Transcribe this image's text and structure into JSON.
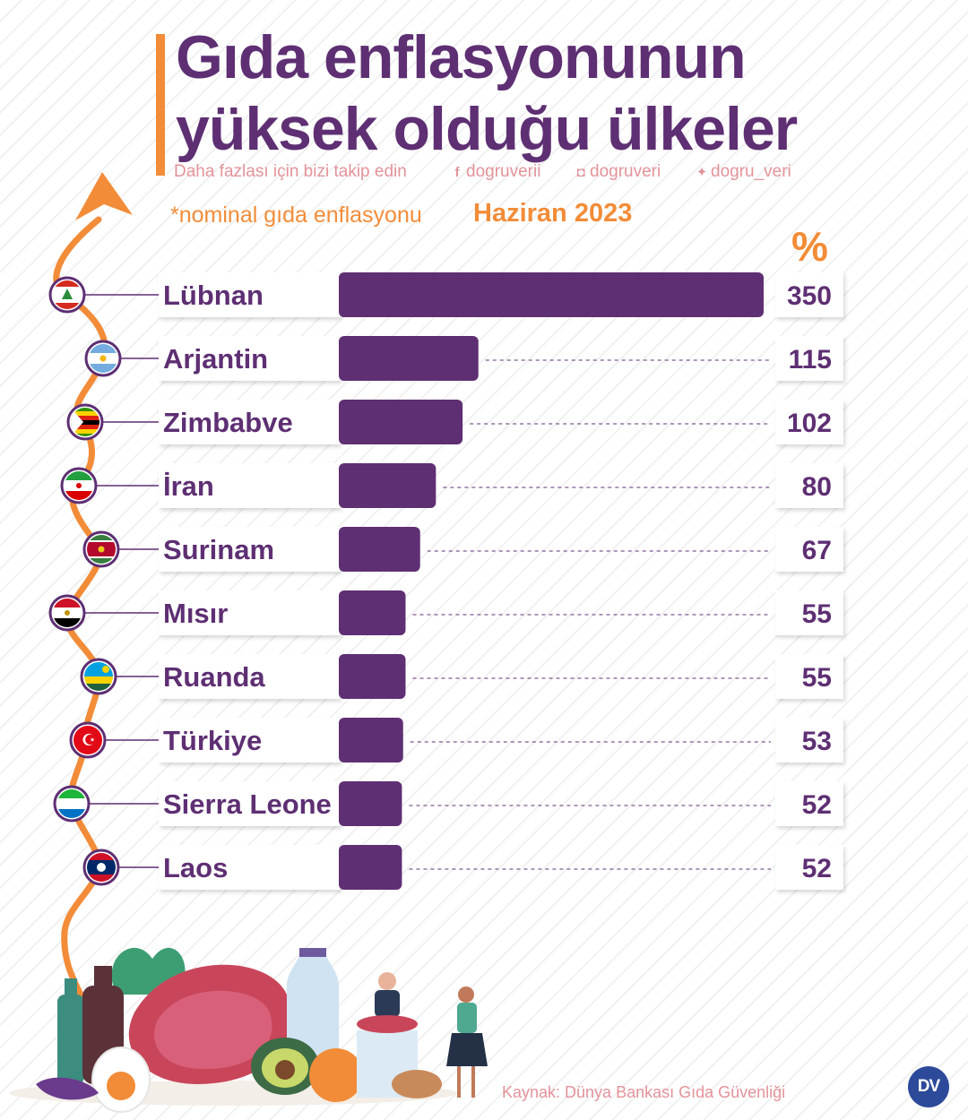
{
  "header": {
    "title_line1": "Gıda enflasyonunun",
    "title_line2": "yüksek olduğu ülkeler",
    "follow_text": "Daha fazlası için bizi takip edin",
    "facebook_handle": "dogruverii",
    "instagram_handle": "dogruveri",
    "twitter_handle": "dogru_veri",
    "note": "*nominal gıda enflasyonu",
    "period": "Haziran 2023",
    "unit": "%"
  },
  "chart_data": {
    "type": "bar",
    "orientation": "horizontal",
    "categories": [
      "Lübnan",
      "Arjantin",
      "Zimbabve",
      "İran",
      "Surinam",
      "Mısır",
      "Ruanda",
      "Türkiye",
      "Sierra Leone",
      "Laos"
    ],
    "values": [
      350,
      115,
      102,
      80,
      67,
      55,
      55,
      53,
      52,
      52
    ],
    "value_labels": [
      "350",
      "115",
      "102",
      "80",
      "67",
      "55",
      "55",
      "53",
      "52",
      "52"
    ],
    "bar_color": "#5e2f73",
    "accent_color": "#f28c38"
  },
  "flags": [
    "lebanon-flag-icon",
    "argentina-flag-icon",
    "zimbabwe-flag-icon",
    "iran-flag-icon",
    "suriname-flag-icon",
    "egypt-flag-icon",
    "rwanda-flag-icon",
    "turkey-flag-icon",
    "sierra-leone-flag-icon",
    "laos-flag-icon"
  ],
  "footer": {
    "source": "Kaynak: Dünya Bankası Gıda Güvenliği",
    "logo_text": "DV"
  }
}
